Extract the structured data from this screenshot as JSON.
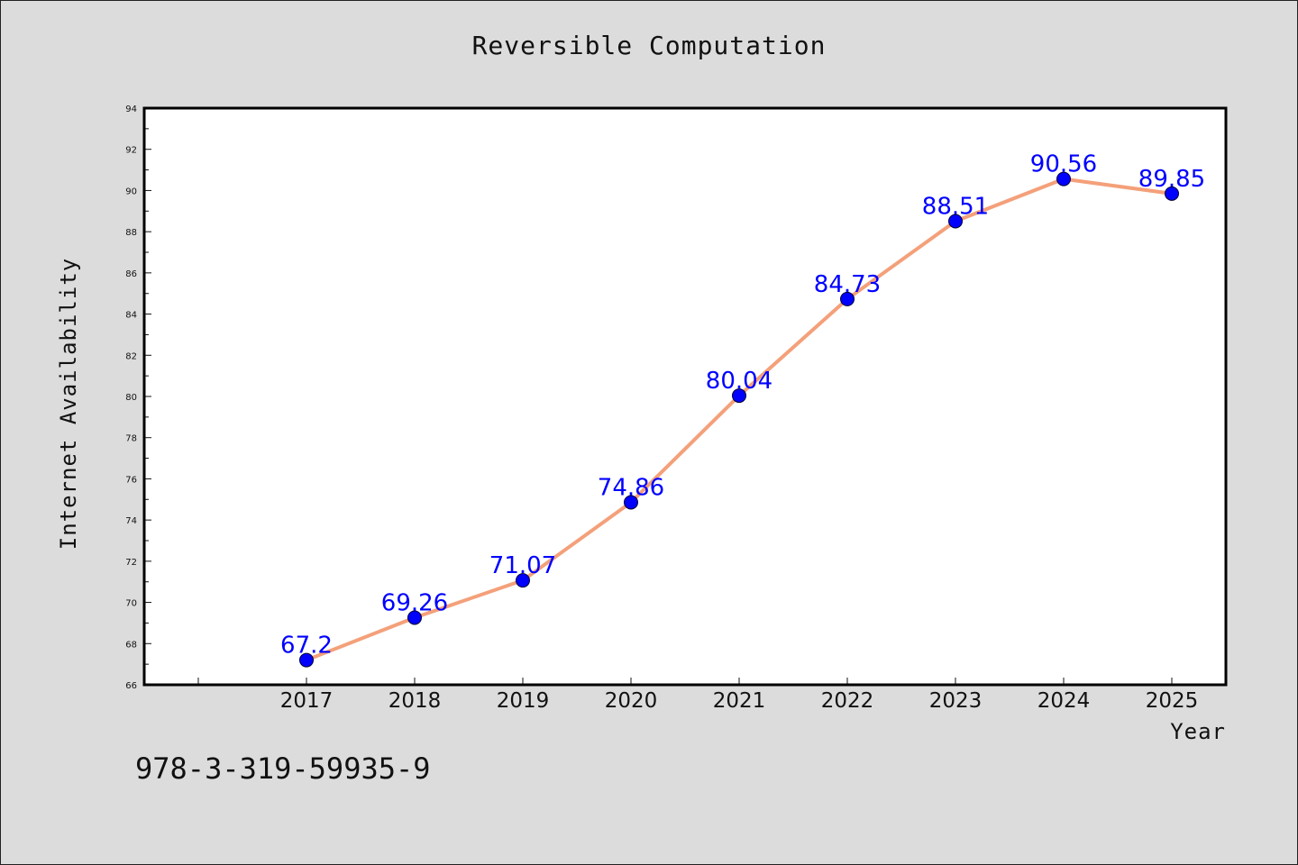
{
  "title": "Reversible Computation",
  "footer_text": "978-3-319-59935-9",
  "chart_data": {
    "type": "line",
    "title": "Reversible Computation",
    "xlabel": "Year",
    "ylabel": "Internet Availability",
    "x": [
      "2017",
      "2018",
      "2019",
      "2020",
      "2021",
      "2022",
      "2023",
      "2024",
      "2025"
    ],
    "series": [
      {
        "values": [
          67.2,
          69.26,
          71.07,
          74.86,
          80.04,
          84.73,
          88.51,
          90.56,
          89.85
        ]
      }
    ],
    "data_labels": [
      "67.2",
      "69.26",
      "71.07",
      "74.86",
      "80.04",
      "84.73",
      "88.51",
      "90.56",
      "89.85"
    ],
    "ylim": [
      66,
      94
    ],
    "yticks": [
      66,
      68,
      70,
      72,
      74,
      76,
      78,
      80,
      82,
      84,
      86,
      88,
      90,
      92,
      94
    ],
    "grid": false,
    "legend": "none",
    "colors": {
      "line": "#f4a07a",
      "marker": "#0000ff",
      "label": "#0000ff"
    }
  }
}
